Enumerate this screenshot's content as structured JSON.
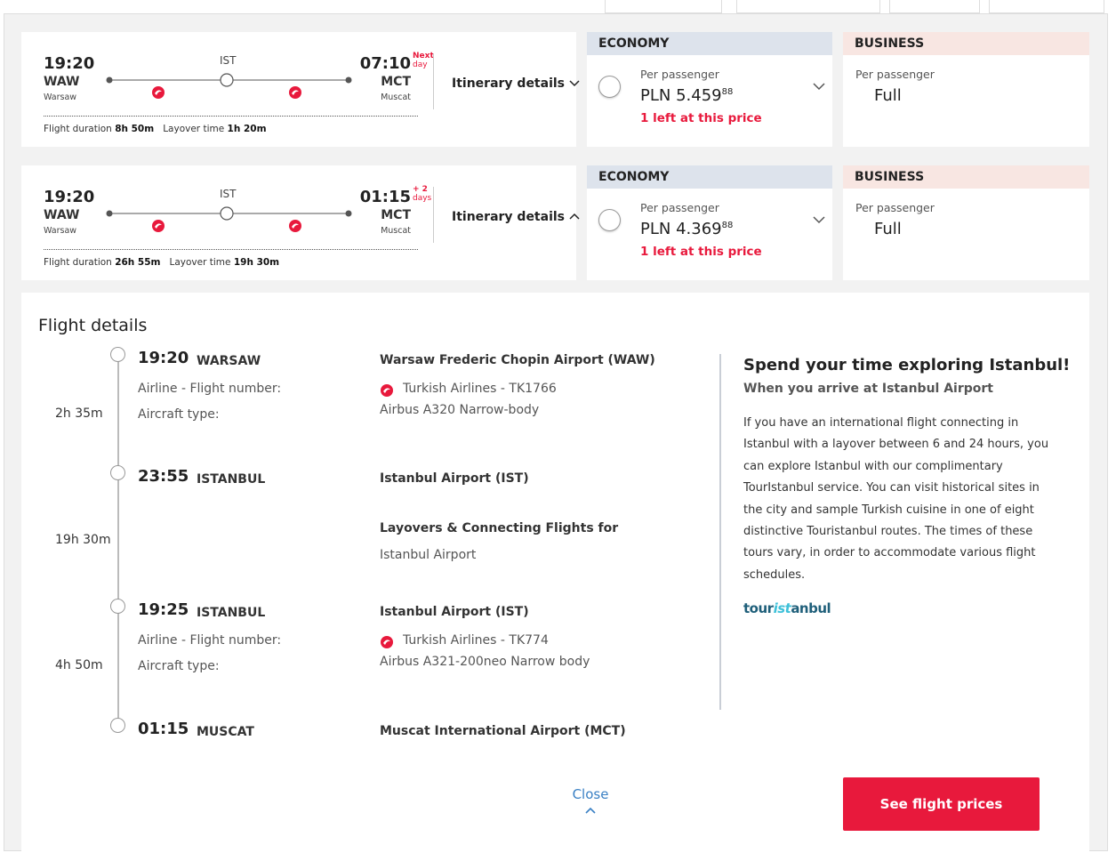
{
  "flights": [
    {
      "dep_time": "19:20",
      "dep_code": "WAW",
      "dep_city": "Warsaw",
      "via": "IST",
      "arr_time": "07:10",
      "arr_note_top": "Next",
      "arr_note_bottom": "day",
      "arr_code": "MCT",
      "arr_city": "Muscat",
      "duration_label": "Flight duration",
      "duration": "8h 50m",
      "layover_label": "Layover time",
      "layover": "1h 20m",
      "itinerary": "Itinerary details",
      "economy": {
        "class": "ECONOMY",
        "per": "Per passenger",
        "currency": "PLN",
        "price": "5.459",
        "cents": "88",
        "note": "1 left at this price"
      },
      "business": {
        "class": "BUSINESS",
        "per": "Per passenger",
        "price": "Full"
      }
    },
    {
      "logo": [
        "tour",
        "ist",
        "anbul"
      ],
      "dep_time": "19:20",
      "dep_code": "WAW",
      "dep_city": "Warsaw",
      "via": "IST",
      "arr_time": "01:15",
      "arr_note_top": "+ 2",
      "arr_note_bottom": "days",
      "arr_code": "MCT",
      "arr_city": "Muscat",
      "duration_label": "Flight duration",
      "duration": "26h 55m",
      "layover_label": "Layover time",
      "layover": "19h 30m",
      "itinerary": "Itinerary details",
      "economy": {
        "class": "ECONOMY",
        "per": "Per passenger",
        "currency": "PLN",
        "price": "4.369",
        "cents": "88",
        "note": "1 left at this price"
      },
      "business": {
        "class": "BUSINESS",
        "per": "Per passenger",
        "price": "Full"
      }
    }
  ],
  "details": {
    "title": "Flight details",
    "stops": [
      {
        "time": "19:20",
        "city": "WARSAW",
        "airport": "Warsaw Frederic Chopin Airport (WAW)"
      },
      {
        "time": "23:55",
        "city": "ISTANBUL",
        "airport": "Istanbul Airport (IST)"
      },
      {
        "time": "19:25",
        "city": "ISTANBUL",
        "airport": "Istanbul Airport (IST)"
      },
      {
        "time": "01:15",
        "city": "MUSCAT",
        "airport": "Muscat International Airport (MCT)"
      }
    ],
    "legs": [
      {
        "duration": "2h 35m",
        "airline_label": "Airline - Flight number:",
        "aircraft_label": "Aircraft type:",
        "airline": "Turkish Airlines - TK1766",
        "aircraft": "Airbus A320 Narrow-body"
      },
      {
        "duration": "4h 50m",
        "airline_label": "Airline - Flight number:",
        "aircraft_label": "Aircraft type:",
        "airline": "Turkish Airlines - TK774",
        "aircraft": "Airbus A321-200neo Narrow body"
      }
    ],
    "layover": {
      "duration": "19h 30m",
      "title": "Layovers & Connecting Flights for",
      "place": "Istanbul Airport"
    },
    "promo": {
      "title": "Spend your time exploring Istanbul!",
      "subtitle": "When you arrive at Istanbul Airport",
      "body": "If you have an international flight connecting in Istanbul with a layover between 6 and 24 hours, you can explore Istanbul with our complimentary TourIstanbul service. You can visit historical sites in the city and sample Turkish cuisine in one of eight distinctive Touristanbul routes. The times of these tours vary, in order to accommodate various flight schedules.",
      "logo": [
        "tour",
        "ist",
        "anbul"
      ]
    },
    "close": "Close",
    "button": "See flight prices"
  }
}
